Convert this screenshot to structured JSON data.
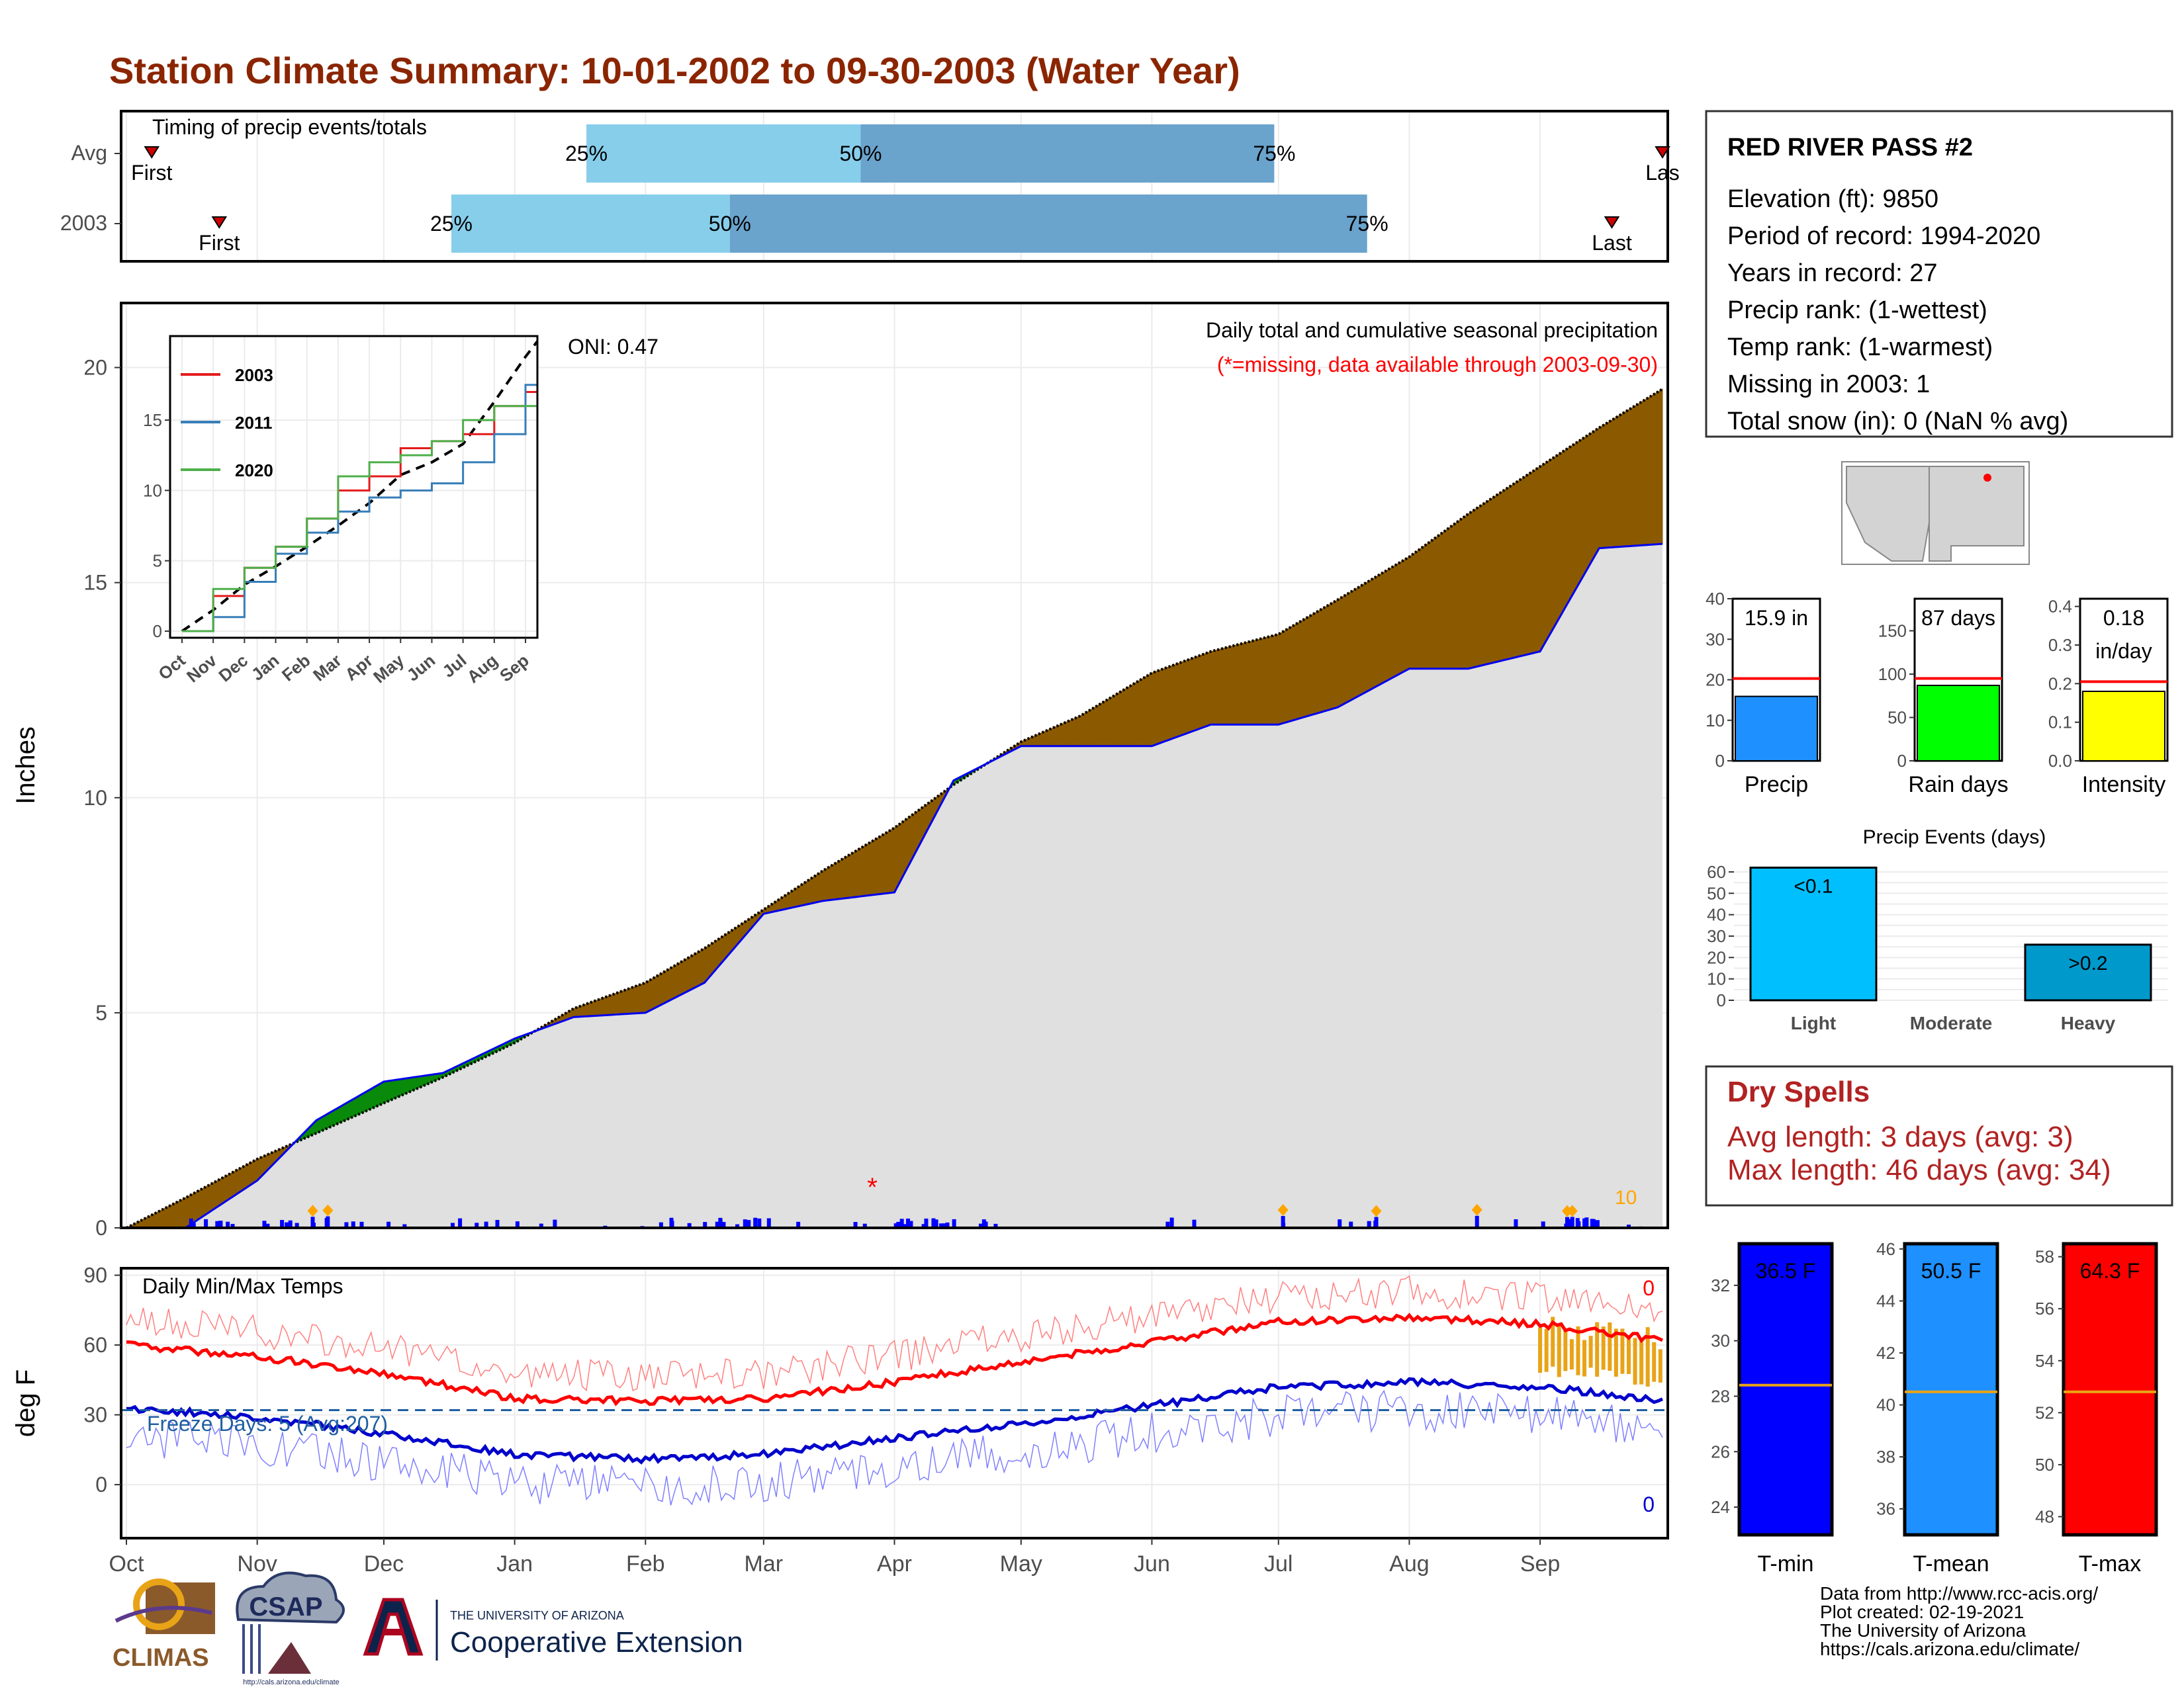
{
  "title": "Station Climate Summary: 10-01-2002 to 09-30-2003 (Water Year)",
  "timing": {
    "label": "Timing of precip events/totals",
    "rows": [
      {
        "name": "Avg",
        "first_label": "First",
        "last_label": "Las",
        "p25_label": "25%",
        "p50_label": "50%",
        "p75_label": "75%"
      },
      {
        "name": "2003",
        "first_label": "First",
        "last_label": "Last",
        "p25_label": "25%",
        "p50_label": "50%",
        "p75_label": "75%"
      }
    ]
  },
  "station": {
    "name": "RED RIVER PASS #2",
    "lines": [
      "Elevation (ft): 9850",
      "Period of record: 1994-2020",
      "Years in record: 27",
      "Precip rank:  (1-wettest)",
      "Temp rank:  (1-warmest)",
      "Missing in 2003: 1",
      "Total snow (in): 0 (NaN % avg)"
    ]
  },
  "main_plot": {
    "ylabel": "Inches",
    "note1": "Daily total and cumulative seasonal precipitation",
    "note2": "(*=missing, data available through 2003-09-30)",
    "oni": "ONI: 0.47",
    "corner_count": "10",
    "missing_marker": "*"
  },
  "temp_plot": {
    "ylabel": "deg F",
    "title": "Daily Min/Max Temps",
    "freeze": "Freeze Days: 5 (Avg:207)",
    "max_count": "0",
    "min_count": "0"
  },
  "x_months": [
    "Oct",
    "Nov",
    "Dec",
    "Jan",
    "Feb",
    "Mar",
    "Apr",
    "May",
    "Jun",
    "Jul",
    "Aug",
    "Sep"
  ],
  "inset": {
    "months": [
      "Oct",
      "Nov",
      "Dec",
      "Jan",
      "Feb",
      "Mar",
      "Apr",
      "May",
      "Jun",
      "Jul",
      "Aug",
      "Sep"
    ],
    "legend": [
      {
        "name": "2003",
        "color": "#e41a1c"
      },
      {
        "name": "2011",
        "color": "#377eb8"
      },
      {
        "name": "2020",
        "color": "#4daf4a"
      }
    ]
  },
  "small_bars": [
    {
      "label": "Precip",
      "value_label": "15.9 in",
      "value": 15.9,
      "avg": 20.3,
      "ymax": 40,
      "ticks": [
        "0",
        "10",
        "20",
        "30",
        "40"
      ],
      "color": "#1e90ff"
    },
    {
      "label": "Rain days",
      "value_label": "87 days",
      "value": 87,
      "avg": 95,
      "ymax": 187,
      "ticks": [
        "0",
        "50",
        "100",
        "150"
      ],
      "color": "#00ff00"
    },
    {
      "label": "Intensity",
      "value_label_1": "0.18",
      "value_label_2": "in/day",
      "value": 0.18,
      "avg": 0.205,
      "ymax": 0.42,
      "ticks": [
        "0.0",
        "0.1",
        "0.2",
        "0.3",
        "0.4"
      ],
      "color": "#ffff00"
    }
  ],
  "events": {
    "title": "Precip Events (days)",
    "categories": [
      "Light",
      "Moderate",
      "Heavy"
    ],
    "values": [
      62,
      0,
      26
    ],
    "labels": [
      "<0.1",
      "",
      ">0.2"
    ],
    "ticks": [
      "0",
      "10",
      "20",
      "30",
      "40",
      "50",
      "60"
    ],
    "colors": [
      "#00bfff",
      "#00bfff",
      "#0099cc"
    ]
  },
  "dry_spells": {
    "title": "Dry Spells",
    "line1": "Avg length: 3 days (avg: 3)",
    "line2": "Max length: 46 days (avg: 34)"
  },
  "temp_bars": [
    {
      "label": "T-min",
      "value_label": "36.5 F",
      "avg": 28.4,
      "color": "#0000ff",
      "ticks": [
        "24",
        "26",
        "28",
        "30",
        "32"
      ]
    },
    {
      "label": "T-mean",
      "value_label": "50.5 F",
      "avg": 40.5,
      "color": "#1e90ff",
      "ticks": [
        "36",
        "38",
        "40",
        "42",
        "44",
        "46"
      ]
    },
    {
      "label": "T-max",
      "value_label": "64.3 F",
      "avg": 52.8,
      "color": "#ff0000",
      "ticks": [
        "48",
        "50",
        "52",
        "54",
        "56",
        "58"
      ]
    }
  ],
  "footer": {
    "lines": [
      "Data from http://www.rcc-acis.org/",
      "Plot created: 02-19-2021",
      "The University of Arizona",
      "https://cals.arizona.edu/climate/"
    ],
    "logos": {
      "climas": "CLIMAS",
      "csap": "CSAP",
      "csap_url": "http://cals.arizona.edu/climate",
      "ua_small": "THE UNIVERSITY OF ARIZONA",
      "ua_big": "Cooperative Extension"
    }
  },
  "chart_data": [
    {
      "type": "bar",
      "title": "Timing of precip events/totals",
      "categories": [
        "Avg",
        "2003"
      ],
      "series": [
        {
          "name": "25%",
          "values": [
            "2003-01-18",
            "2002-12-17"
          ]
        },
        {
          "name": "50%",
          "values": [
            "2003-03-24",
            "2003-02-21"
          ]
        },
        {
          "name": "75%",
          "values": [
            "2003-06-30",
            "2003-07-22"
          ]
        },
        {
          "name": "First",
          "values": [
            "2002-10-07",
            "2002-10-23"
          ]
        },
        {
          "name": "Last",
          "values": [
            "2003-09-30",
            "2003-09-18"
          ]
        }
      ]
    },
    {
      "type": "area",
      "title": "Daily total and cumulative seasonal precipitation",
      "ylabel": "Inches",
      "ylim": [
        0,
        21.5
      ],
      "x": [
        "10-01",
        "10-15",
        "11-01",
        "11-15",
        "12-01",
        "12-15",
        "01-01",
        "01-15",
        "02-01",
        "02-15",
        "03-01",
        "03-15",
        "04-01",
        "04-15",
        "05-01",
        "05-15",
        "06-01",
        "06-15",
        "07-01",
        "07-15",
        "08-01",
        "08-15",
        "09-01",
        "09-15",
        "09-30"
      ],
      "series": [
        {
          "name": "Avg",
          "values": [
            0,
            0.7,
            1.6,
            2.2,
            2.9,
            3.5,
            4.3,
            5.1,
            5.7,
            6.5,
            7.4,
            8.3,
            9.3,
            10.3,
            11.3,
            11.9,
            12.9,
            13.4,
            13.8,
            14.6,
            15.6,
            16.6,
            17.7,
            18.6,
            19.5
          ]
        },
        {
          "name": "2003",
          "values": [
            0,
            0,
            1.1,
            2.5,
            3.4,
            3.6,
            4.4,
            4.9,
            5.0,
            5.7,
            7.3,
            7.6,
            7.8,
            10.4,
            11.2,
            11.2,
            11.2,
            11.7,
            11.7,
            12.1,
            13.0,
            13.0,
            13.4,
            15.8,
            15.9
          ]
        }
      ]
    },
    {
      "type": "line",
      "title": "Daily Min/Max Temps",
      "ylabel": "deg F",
      "ylim": [
        -23,
        93
      ],
      "x": [
        "Oct",
        "Nov",
        "Dec",
        "Jan",
        "Feb",
        "Mar",
        "Apr",
        "May",
        "Jun",
        "Jul",
        "Aug",
        "Sep",
        "Sep-30"
      ],
      "series": [
        {
          "name": "Avg max",
          "values": [
            60,
            55,
            48,
            37,
            36,
            37,
            44,
            53,
            61,
            70,
            72,
            69,
            62
          ]
        },
        {
          "name": "Avg min",
          "values": [
            33,
            29,
            22,
            13,
            11,
            13,
            20,
            26,
            34,
            42,
            44,
            42,
            36
          ]
        },
        {
          "name": "Freeze line",
          "values": [
            32,
            32,
            32,
            32,
            32,
            32,
            32,
            32,
            32,
            32,
            32,
            32,
            32
          ]
        }
      ]
    },
    {
      "type": "line",
      "title": "",
      "x": [
        "Oct",
        "Nov",
        "Dec",
        "Jan",
        "Feb",
        "Mar",
        "Apr",
        "May",
        "Jun",
        "Jul",
        "Aug",
        "Sep"
      ],
      "series": [
        {
          "name": "2003",
          "values": [
            0,
            2.5,
            4.5,
            6,
            8,
            10,
            11,
            13,
            13.5,
            14,
            16,
            17
          ]
        },
        {
          "name": "2011",
          "values": [
            0,
            1,
            3.5,
            5.5,
            7,
            8.5,
            9.5,
            10,
            10.5,
            12,
            14,
            17.5
          ]
        },
        {
          "name": "2020",
          "values": [
            0,
            3,
            4.5,
            6,
            8,
            11,
            12,
            12.5,
            13.5,
            15,
            16,
            16
          ]
        }
      ]
    },
    {
      "type": "bar",
      "title": "Precip Events (days)",
      "categories": [
        "Light",
        "Moderate",
        "Heavy"
      ],
      "values": [
        62,
        0,
        26
      ]
    },
    {
      "type": "bar",
      "categories": [
        "T-min",
        "T-mean",
        "T-max"
      ],
      "values": [
        36.5,
        50.5,
        64.3
      ]
    }
  ]
}
